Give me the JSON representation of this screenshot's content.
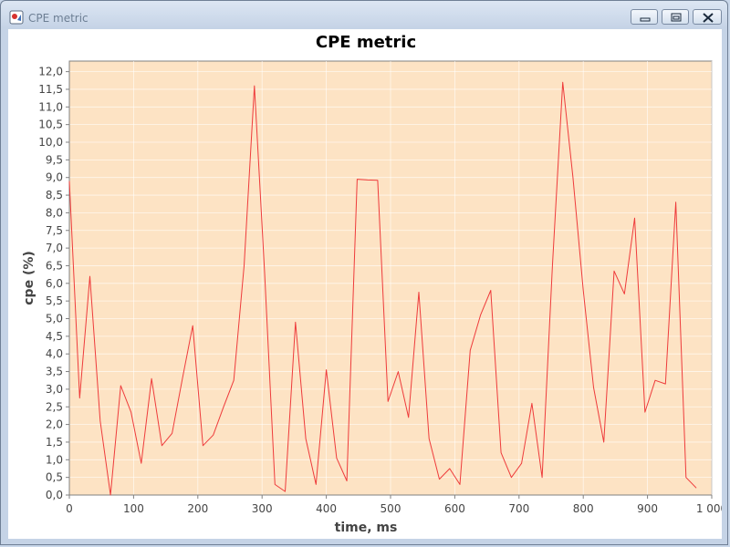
{
  "window": {
    "title": "CPE metric"
  },
  "chart_data": {
    "type": "line",
    "title": "CPE metric",
    "xlabel": "time, ms",
    "ylabel": "cpe (%)",
    "xlim": [
      0,
      1000
    ],
    "ylim": [
      0,
      12.3
    ],
    "xticks": [
      0,
      100,
      200,
      300,
      400,
      500,
      600,
      700,
      800,
      900,
      1000
    ],
    "xtick_labels": [
      "0",
      "100",
      "200",
      "300",
      "400",
      "500",
      "600",
      "700",
      "800",
      "900",
      "1 000"
    ],
    "yticks": [
      0,
      0.5,
      1,
      1.5,
      2,
      2.5,
      3,
      3.5,
      4,
      4.5,
      5,
      5.5,
      6,
      6.5,
      7,
      7.5,
      8,
      8.5,
      9,
      9.5,
      10,
      10.5,
      11,
      11.5,
      12
    ],
    "ytick_labels": [
      "0,0",
      "0,5",
      "1,0",
      "1,5",
      "2,0",
      "2,5",
      "3,0",
      "3,5",
      "4,0",
      "4,5",
      "5,0",
      "5,5",
      "6,0",
      "6,5",
      "7,0",
      "7,5",
      "8,0",
      "8,5",
      "9,0",
      "9,5",
      "10,0",
      "10,5",
      "11,0",
      "11,5",
      "12,0"
    ],
    "grid": true,
    "colors": {
      "plot_background": "#fde3c4",
      "line": "#ee3b3b",
      "grid": "#ffffff"
    },
    "series": [
      {
        "x": [
          0,
          16,
          32,
          48,
          64,
          80,
          96,
          112,
          128,
          144,
          160,
          176,
          192,
          208,
          224,
          240,
          256,
          272,
          288,
          304,
          320,
          336,
          352,
          368,
          384,
          400,
          416,
          432,
          448,
          464,
          480,
          496,
          512,
          528,
          544,
          560,
          576,
          592,
          608,
          624,
          640,
          656,
          672,
          688,
          704,
          720,
          736,
          752,
          768,
          784,
          800,
          816,
          832,
          848,
          864,
          880,
          896,
          912,
          928,
          944,
          960,
          976
        ],
        "y": [
          8.9,
          2.75,
          6.2,
          2.1,
          0.0,
          3.1,
          2.35,
          0.9,
          3.3,
          1.4,
          1.75,
          3.3,
          4.8,
          1.4,
          1.7,
          2.5,
          3.25,
          6.5,
          11.6,
          6.3,
          0.3,
          0.1,
          4.9,
          1.6,
          0.3,
          3.55,
          1.05,
          0.4,
          8.95,
          8.93,
          8.92,
          2.65,
          3.5,
          2.2,
          5.75,
          1.6,
          0.45,
          0.75,
          0.3,
          4.1,
          5.1,
          5.8,
          1.2,
          0.5,
          0.9,
          2.6,
          0.5,
          6.5,
          11.7,
          9.0,
          5.8,
          3.05,
          1.5,
          6.35,
          5.7,
          7.85,
          2.35,
          3.25,
          3.15,
          8.3,
          0.5,
          0.2
        ]
      }
    ]
  }
}
